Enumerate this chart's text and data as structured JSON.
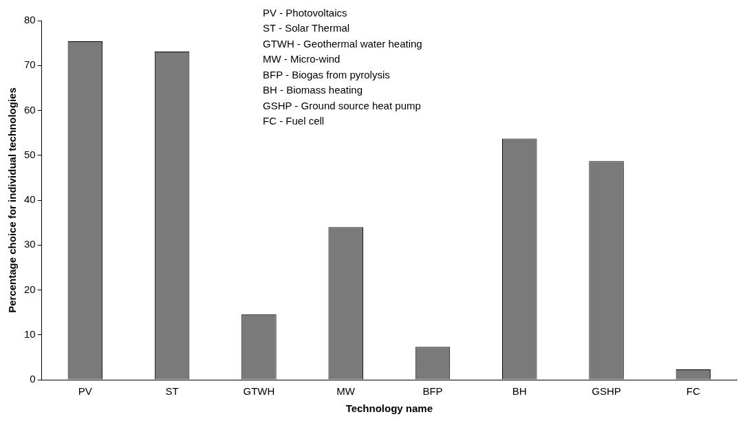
{
  "chart_data": {
    "type": "bar",
    "xlabel": "Technology name",
    "ylabel": "Percentage choice for individual technologies",
    "categories": [
      "PV",
      "ST",
      "GTWH",
      "MW",
      "BFP",
      "BH",
      "GSHP",
      "FC"
    ],
    "values": [
      75.4,
      73.1,
      14.6,
      34.0,
      7.3,
      53.7,
      48.7,
      2.3
    ],
    "color": "#7a7a7a",
    "ylim": [
      0,
      80
    ],
    "yticks": [
      0,
      10,
      20,
      30,
      40,
      50,
      60,
      70,
      80
    ],
    "grid": false,
    "legend": false,
    "annotations": [
      "PV - Photovoltaics",
      "ST - Solar Thermal",
      "GTWH - Geothermal water heating",
      "MW - Micro-wind",
      "BFP - Biogas from pyrolysis",
      "BH - Biomass heating",
      "GSHP - Ground source heat pump",
      "FC - Fuel cell"
    ]
  }
}
